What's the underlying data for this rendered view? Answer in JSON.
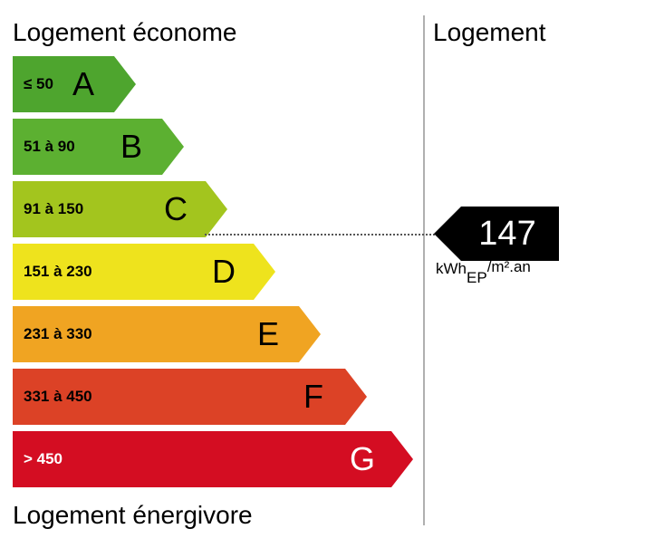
{
  "header": {
    "top_label": "Logement économe",
    "bottom_label": "Logement énergivore",
    "column_title": "Logement"
  },
  "bands": [
    {
      "letter": "A",
      "range": "≤ 50",
      "color": "#4ea52e",
      "text_color": "#000000"
    },
    {
      "letter": "B",
      "range": "51 à 90",
      "color": "#5cb031",
      "text_color": "#000000"
    },
    {
      "letter": "C",
      "range": "91 à 150",
      "color": "#a3c51e",
      "text_color": "#000000"
    },
    {
      "letter": "D",
      "range": "151 à 230",
      "color": "#eee31d",
      "text_color": "#000000"
    },
    {
      "letter": "E",
      "range": "231 à 330",
      "color": "#f0a422",
      "text_color": "#000000"
    },
    {
      "letter": "F",
      "range": "331 à 450",
      "color": "#dc4226",
      "text_color": "#000000"
    },
    {
      "letter": "G",
      "range": "> 450",
      "color": "#d40d22",
      "text_color": "#ffffff"
    }
  ],
  "current": {
    "value": "147",
    "class": "C",
    "unit_prefix": "kWh",
    "unit_sub": "EP",
    "unit_suffix": "/m².an"
  }
}
